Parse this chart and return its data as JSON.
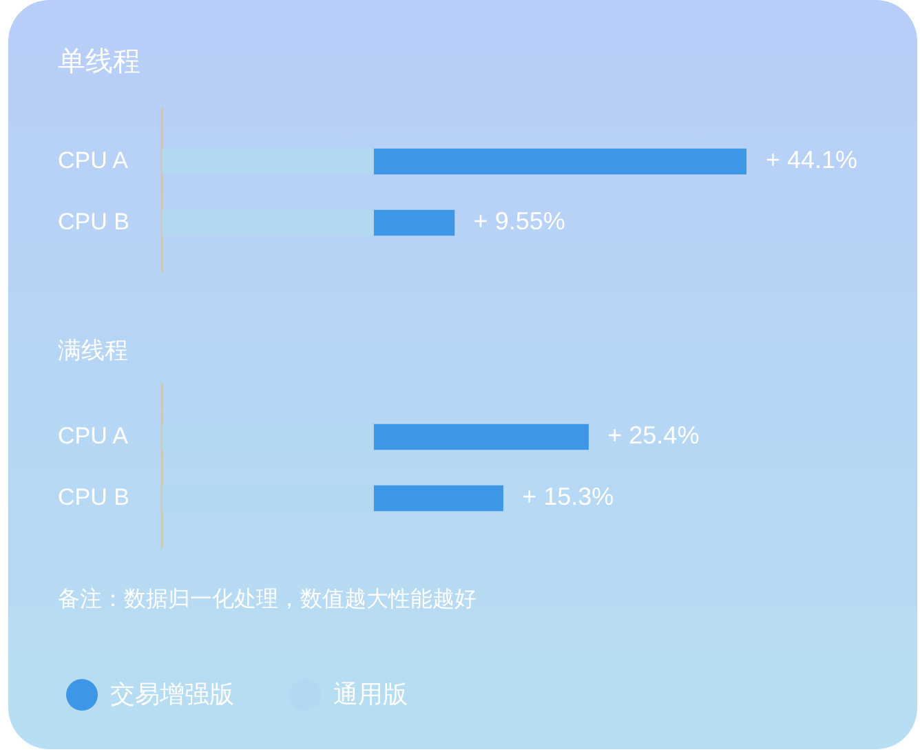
{
  "chart_data": [
    {
      "type": "bar",
      "title": "单线程",
      "orientation": "horizontal",
      "stacked": true,
      "tick_labels": "y",
      "categories": [
        "CPU A",
        "CPU B"
      ],
      "series": [
        {
          "color": "#b3d8f2",
          "values": [
            25,
            25
          ]
        },
        {
          "color": "#3d96e6",
          "values": [
            44.1,
            9.55
          ],
          "value_labels": [
            "+ 44.1%",
            "+ 9.55%"
          ]
        }
      ]
    },
    {
      "type": "bar",
      "title": "满线程",
      "orientation": "horizontal",
      "stacked": true,
      "tick_labels": "y",
      "categories": [
        "CPU A",
        "CPU B"
      ],
      "series": [
        {
          "name": "通用版",
          "color": "#b3d8f2",
          "values": [
            25,
            25
          ]
        },
        {
          "name": "交易增强版",
          "color": "#3d96e6",
          "values": [
            25.4,
            15.3
          ],
          "value_labels": [
            "+ 25.4%",
            "+ 15.3%"
          ]
        }
      ],
      "legend": "bottom",
      "annotations": [
        "备注：数据归一化处理，数值越大性能越好"
      ]
    }
  ]
}
